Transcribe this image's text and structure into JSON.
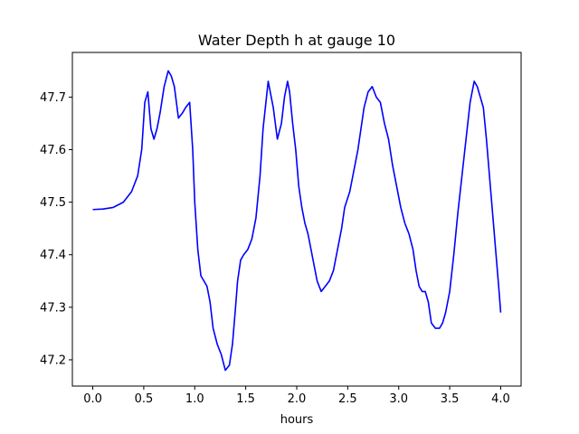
{
  "chart_data": {
    "type": "line",
    "title": "Water Depth h at gauge 10",
    "xlabel": "hours",
    "ylabel": "",
    "xlim": [
      -0.2,
      4.2
    ],
    "ylim": [
      47.15,
      47.785
    ],
    "grid": false,
    "x_ticks": [
      0.0,
      0.5,
      1.0,
      1.5,
      2.0,
      2.5,
      3.0,
      3.5,
      4.0
    ],
    "x_tick_labels": [
      "0.0",
      "0.5",
      "1.0",
      "1.5",
      "2.0",
      "2.5",
      "3.0",
      "3.5",
      "4.0"
    ],
    "y_ticks": [
      47.2,
      47.3,
      47.4,
      47.5,
      47.6,
      47.7
    ],
    "y_tick_labels": [
      "47.2",
      "47.3",
      "47.4",
      "47.5",
      "47.6",
      "47.7"
    ],
    "series": [
      {
        "name": "",
        "color": "#0000ff",
        "x": [
          0.0,
          0.1,
          0.2,
          0.3,
          0.38,
          0.44,
          0.48,
          0.51,
          0.54,
          0.57,
          0.6,
          0.63,
          0.66,
          0.7,
          0.74,
          0.77,
          0.8,
          0.84,
          0.88,
          0.91,
          0.95,
          0.98,
          1.0,
          1.03,
          1.06,
          1.09,
          1.12,
          1.15,
          1.18,
          1.22,
          1.26,
          1.3,
          1.34,
          1.37,
          1.4,
          1.42,
          1.45,
          1.48,
          1.52,
          1.56,
          1.6,
          1.64,
          1.67,
          1.72,
          1.77,
          1.81,
          1.85,
          1.88,
          1.91,
          1.93,
          1.96,
          1.99,
          2.02,
          2.05,
          2.08,
          2.11,
          2.14,
          2.17,
          2.2,
          2.24,
          2.28,
          2.32,
          2.36,
          2.4,
          2.44,
          2.47,
          2.52,
          2.56,
          2.6,
          2.63,
          2.66,
          2.7,
          2.74,
          2.78,
          2.82,
          2.86,
          2.9,
          2.94,
          2.98,
          3.02,
          3.06,
          3.1,
          3.14,
          3.17,
          3.2,
          3.23,
          3.26,
          3.29,
          3.32,
          3.36,
          3.4,
          3.43,
          3.46,
          3.5,
          3.54,
          3.58,
          3.62,
          3.66,
          3.7,
          3.74,
          3.77,
          3.8,
          3.83,
          3.86,
          3.89,
          3.92,
          3.95,
          3.98,
          4.0
        ],
        "y": [
          47.486,
          47.487,
          47.49,
          47.5,
          47.52,
          47.55,
          47.6,
          47.69,
          47.71,
          47.64,
          47.62,
          47.64,
          47.67,
          47.72,
          47.75,
          47.74,
          47.72,
          47.66,
          47.67,
          47.68,
          47.69,
          47.6,
          47.5,
          47.41,
          47.36,
          47.35,
          47.34,
          47.31,
          47.26,
          47.23,
          47.21,
          47.18,
          47.19,
          47.23,
          47.3,
          47.35,
          47.39,
          47.4,
          47.41,
          47.43,
          47.47,
          47.55,
          47.64,
          47.73,
          47.68,
          47.62,
          47.65,
          47.7,
          47.73,
          47.71,
          47.65,
          47.6,
          47.53,
          47.49,
          47.46,
          47.44,
          47.41,
          47.38,
          47.35,
          47.33,
          47.34,
          47.35,
          47.37,
          47.41,
          47.45,
          47.49,
          47.52,
          47.56,
          47.6,
          47.64,
          47.68,
          47.71,
          47.72,
          47.7,
          47.69,
          47.65,
          47.62,
          47.57,
          47.53,
          47.49,
          47.46,
          47.44,
          47.41,
          47.37,
          47.34,
          47.33,
          47.33,
          47.31,
          47.27,
          47.26,
          47.26,
          47.27,
          47.29,
          47.33,
          47.4,
          47.48,
          47.55,
          47.62,
          47.69,
          47.73,
          47.72,
          47.7,
          47.68,
          47.62,
          47.55,
          47.48,
          47.41,
          47.34,
          47.29
        ]
      }
    ]
  }
}
